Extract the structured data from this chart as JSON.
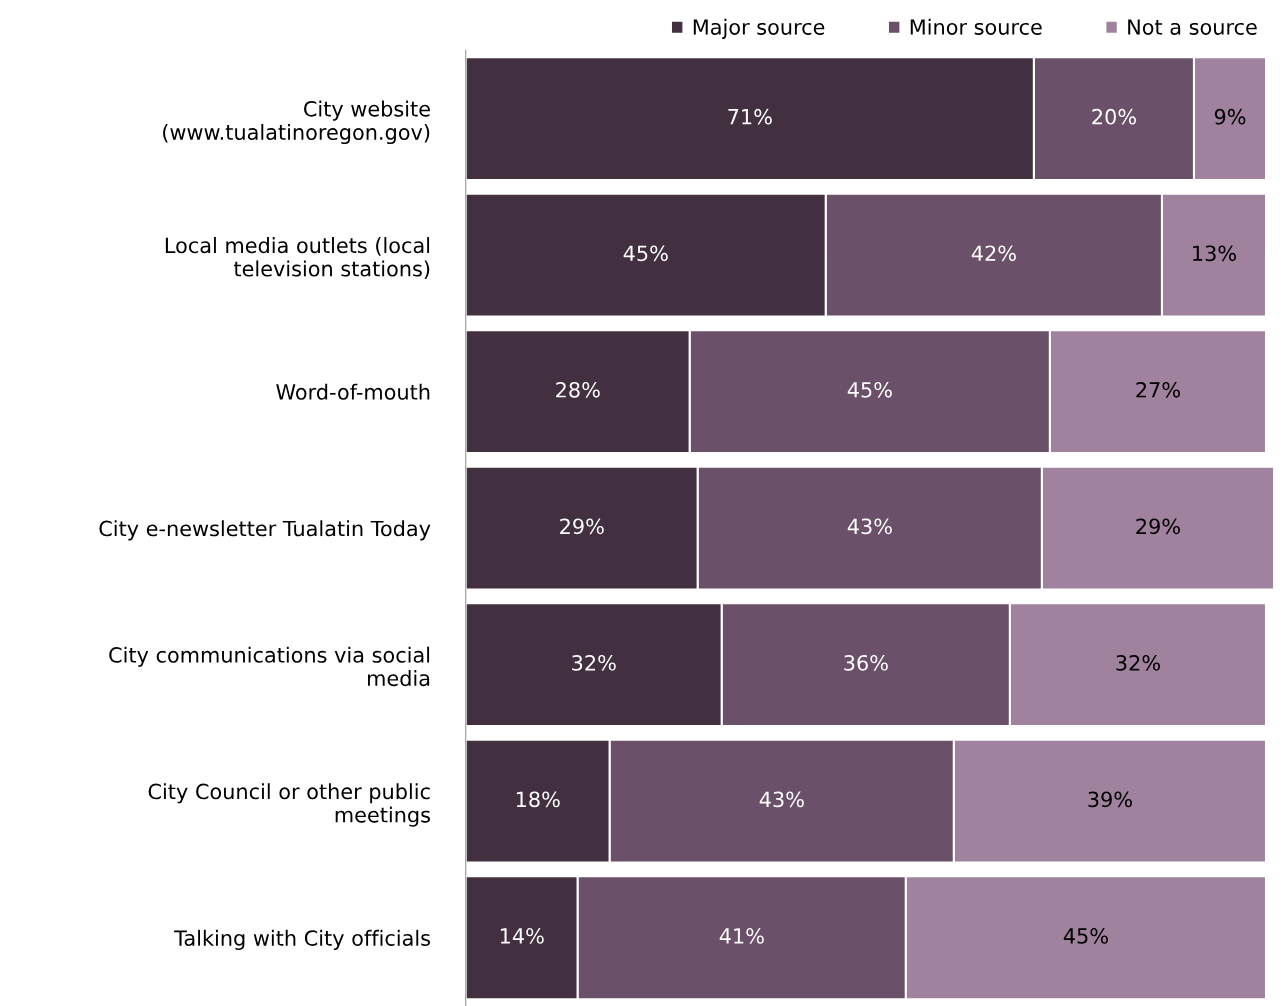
{
  "chart_data": {
    "type": "bar",
    "orientation": "horizontal",
    "stacked": true,
    "legend": "top right",
    "grid": false,
    "tick_labels": "y",
    "categories": [
      "City website\n(www.tualatinoregon.gov)",
      "Local media outlets (local\ntelevision stations)",
      "Word-of-mouth",
      "City e-newsletter Tualatin Today",
      "City communications via social\nmedia",
      "City Council or other public\nmeetings",
      "Talking with City officials"
    ],
    "series": [
      {
        "name": "Major source",
        "color": "#422f3f",
        "values": [
          71,
          45,
          28,
          29,
          32,
          18,
          14
        ],
        "value_labels": [
          "71%",
          "45%",
          "28%",
          "29%",
          "32%",
          "18%",
          "14%"
        ]
      },
      {
        "name": "Minor source",
        "color": "#6b5069",
        "values": [
          20,
          42,
          45,
          43,
          36,
          43,
          41
        ],
        "value_labels": [
          "20%",
          "42%",
          "45%",
          "43%",
          "36%",
          "43%",
          "41%"
        ]
      },
      {
        "name": "Not a source",
        "color": "#a0829e",
        "values": [
          9,
          13,
          27,
          29,
          32,
          39,
          45
        ],
        "value_labels": [
          "9%",
          "13%",
          "27%",
          "29%",
          "32%",
          "39%",
          "45%"
        ]
      }
    ]
  }
}
